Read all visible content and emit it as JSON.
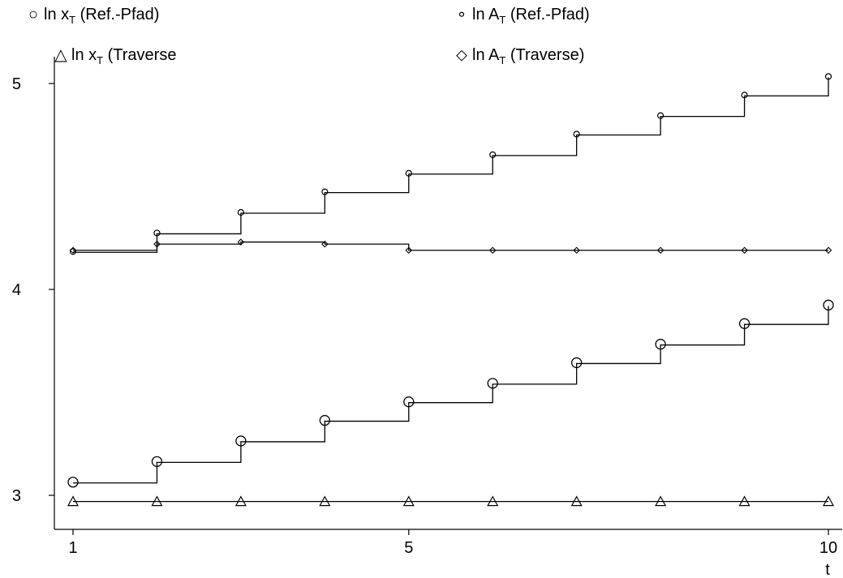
{
  "chart_data": {
    "type": "line",
    "title": "",
    "xlabel": "t",
    "ylabel": "",
    "xlim": [
      1,
      10
    ],
    "ylim": [
      3,
      5
    ],
    "x_ticks": [
      1,
      5,
      10
    ],
    "y_ticks": [
      3,
      4,
      5
    ],
    "x_tick_labels": [
      "1",
      "5",
      "10"
    ],
    "y_tick_labels": [
      "3",
      "4",
      "5"
    ],
    "step": true,
    "x": [
      1,
      2,
      3,
      4,
      5,
      6,
      7,
      8,
      9,
      10
    ],
    "series": [
      {
        "name_main": "ln x",
        "name_sub": "T",
        "name_rest": " (Ref.-Pfad)",
        "marker": "circle-large",
        "values": [
          3.06,
          3.16,
          3.26,
          3.36,
          3.45,
          3.54,
          3.64,
          3.73,
          3.83,
          3.92
        ]
      },
      {
        "name_main": "ln A",
        "name_sub": "T",
        "name_rest": " (Ref.-Pfad)",
        "marker": "circle-small",
        "values": [
          4.18,
          4.27,
          4.37,
          4.47,
          4.56,
          4.65,
          4.75,
          4.84,
          4.94,
          5.03
        ]
      },
      {
        "name_main": "ln x",
        "name_sub": "T",
        "name_rest": " (Traverse",
        "marker": "triangle",
        "values": [
          2.97,
          2.97,
          2.97,
          2.97,
          2.97,
          2.97,
          2.97,
          2.97,
          2.97,
          2.97
        ]
      },
      {
        "name_main": "ln A",
        "name_sub": "T",
        "name_rest": " (Traverse)",
        "marker": "diamond",
        "values": [
          4.19,
          4.22,
          4.23,
          4.22,
          4.19,
          4.19,
          4.19,
          4.19,
          4.19,
          4.19
        ]
      }
    ],
    "legend": [
      {
        "symbol": "○",
        "series": 0
      },
      {
        "symbol": "∘",
        "series": 1
      },
      {
        "symbol": "△",
        "series": 2
      },
      {
        "symbol": "⬦",
        "series": 3
      }
    ]
  }
}
